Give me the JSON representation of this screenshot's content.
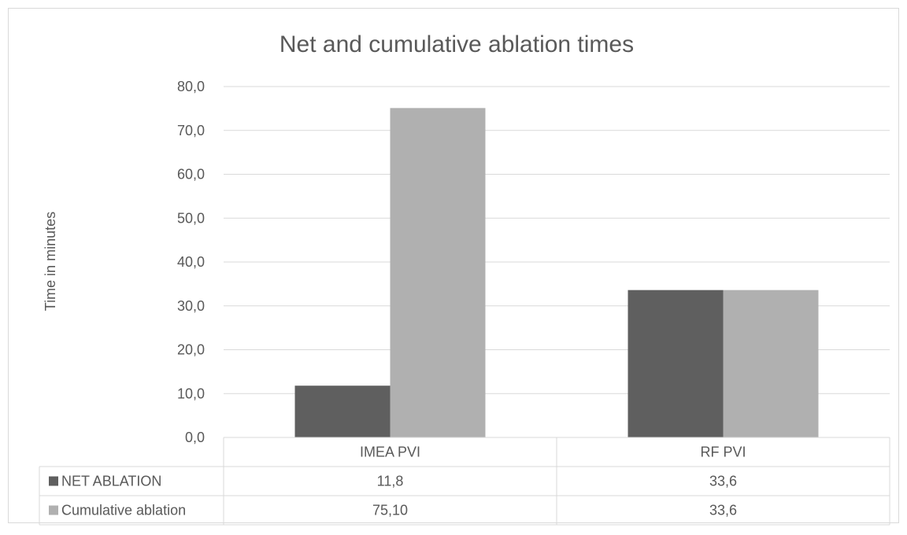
{
  "chart_data": {
    "type": "bar",
    "title": "Net and cumulative ablation times",
    "ylabel": "Time in minutes",
    "xlabel": "",
    "categories": [
      "IMEA PVI",
      "RF PVI"
    ],
    "series": [
      {
        "name": "NET ABLATION",
        "values": [
          11.8,
          33.6
        ],
        "labels": [
          "11,8",
          "33,6"
        ],
        "color": "#5f5f5f"
      },
      {
        "name": "Cumulative ablation",
        "values": [
          75.1,
          33.6
        ],
        "labels": [
          "75,10",
          "33,6"
        ],
        "color": "#b0b0b0"
      }
    ],
    "ylim": [
      0,
      80
    ],
    "yticks": [
      0,
      10,
      20,
      30,
      40,
      50,
      60,
      70,
      80
    ],
    "ytick_labels": [
      "0,0",
      "10,0",
      "20,0",
      "30,0",
      "40,0",
      "50,0",
      "60,0",
      "70,0",
      "80,0"
    ],
    "grid": true,
    "legend": "data-table",
    "gridline_color": "#d9d9d9",
    "text_color": "#595959"
  }
}
